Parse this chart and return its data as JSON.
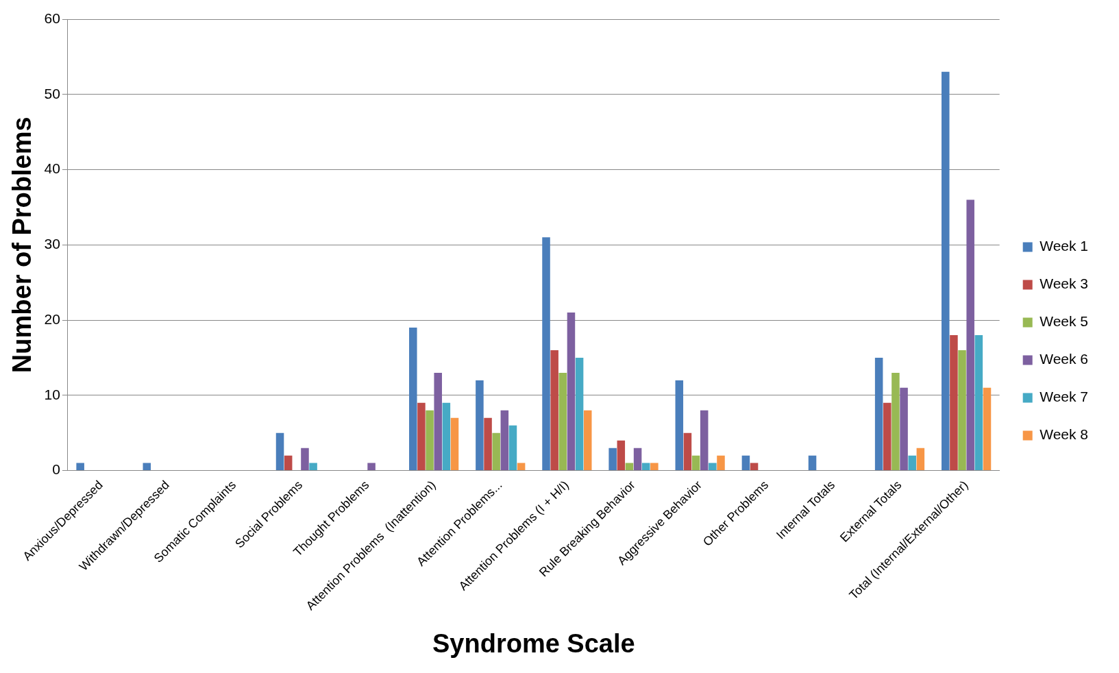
{
  "chart_data": {
    "type": "bar",
    "xlabel": "Syndrome Scale",
    "ylabel": "Number of Problems",
    "categories": [
      "Anxious/Depressed",
      "Withdrawn/Depressed",
      "Somatic Complaints",
      "Social Problems",
      "Thought Problems",
      "Attention Problems  (Inattention)",
      "Attention Problems...",
      "Attention Problems (I + H/I)",
      "Rule Breaking Behavior",
      "Aggressive Behavior",
      "Other Problems",
      "Internal Totals",
      "External Totals",
      "Total (Internal/External/Other)"
    ],
    "series": [
      {
        "name": "Week 1",
        "color": "#4a7ebb",
        "values": [
          1,
          1,
          0,
          5,
          0,
          19,
          12,
          31,
          3,
          12,
          2,
          2,
          15,
          53
        ]
      },
      {
        "name": "Week 3",
        "color": "#be4b48",
        "values": [
          0,
          0,
          0,
          2,
          0,
          9,
          7,
          16,
          4,
          5,
          1,
          0,
          9,
          18
        ]
      },
      {
        "name": "Week 5",
        "color": "#98b954",
        "values": [
          0,
          0,
          0,
          0,
          0,
          8,
          5,
          13,
          1,
          2,
          0,
          0,
          13,
          16
        ]
      },
      {
        "name": "Week 6",
        "color": "#7d60a0",
        "values": [
          0,
          0,
          0,
          3,
          1,
          13,
          8,
          21,
          3,
          8,
          0,
          0,
          11,
          36
        ]
      },
      {
        "name": "Week 7",
        "color": "#46aac5",
        "values": [
          0,
          0,
          0,
          1,
          0,
          9,
          6,
          15,
          1,
          1,
          0,
          0,
          2,
          18
        ]
      },
      {
        "name": "Week 8",
        "color": "#f79646",
        "values": [
          0,
          0,
          0,
          0,
          0,
          7,
          1,
          8,
          1,
          2,
          0,
          0,
          3,
          11
        ]
      }
    ],
    "ylim": [
      0,
      60
    ],
    "yticks": [
      0,
      10,
      20,
      30,
      40,
      50,
      60
    ],
    "grid": "y",
    "legend": "right"
  }
}
